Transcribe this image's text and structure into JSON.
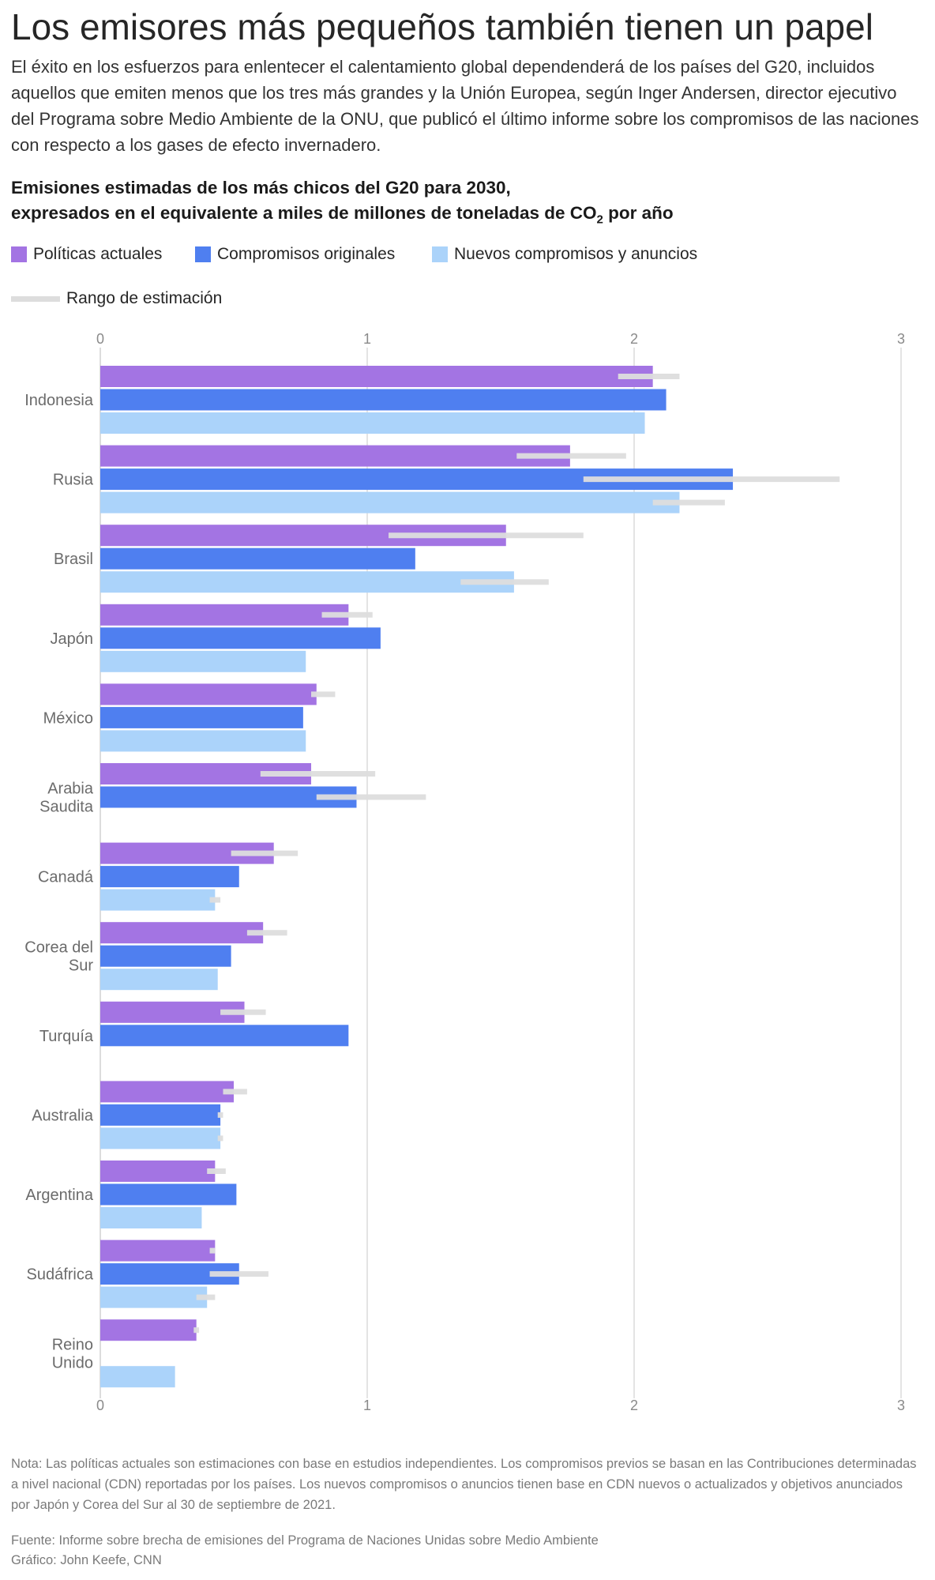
{
  "headline": "Los emisores más pequeños también tienen un papel",
  "intro": "El éxito en los esfuerzos para enlentecer el calentamiento global dependenderá de los países del G20, incluidos aquellos que emiten menos que los tres más grandes y la Unión Europea, según Inger Andersen, director ejecutivo del Programa sobre Medio Ambiente de la ONU, que publicó el último informe sobre los compromisos de las naciones con respecto a los gases de efecto invernadero.",
  "subtitle_line1": "Emisiones estimadas de los más chicos del G20 para 2030,",
  "subtitle_line2_prefix": "expresados en el equivalente a miles de millones de toneladas de CO",
  "subtitle_sub": "2",
  "subtitle_line2_suffix": " por año",
  "legend": {
    "current": "Políticas actuales",
    "original": "Compromisos originales",
    "new": "Nuevos compromisos y anuncios",
    "range": "Rango de estimación"
  },
  "colors": {
    "current": "#a374e3",
    "original": "#4f7ff0",
    "new": "#abd3fa",
    "range": "#dddddd",
    "grid": "#dcdcdc"
  },
  "chart_data": {
    "type": "bar",
    "orientation": "horizontal",
    "xlim": [
      0,
      3
    ],
    "xticks": [
      "0",
      "1",
      "2",
      "3"
    ],
    "grid": true,
    "legend_placement": "top-left",
    "categories": [
      [
        "Indonesia"
      ],
      [
        "Rusia"
      ],
      [
        "Brasil"
      ],
      [
        "Japón"
      ],
      [
        "México"
      ],
      [
        "Arabia",
        "Saudita"
      ],
      [
        "Canadá"
      ],
      [
        "Corea del",
        "Sur"
      ],
      [
        "Turquía"
      ],
      [
        "Australia"
      ],
      [
        "Argentina"
      ],
      [
        "Sudáfrica"
      ],
      [
        "Reino",
        "Unido"
      ]
    ],
    "series": [
      {
        "name": "Políticas actuales",
        "key": "current",
        "values": [
          2.07,
          1.76,
          1.52,
          0.93,
          0.81,
          0.79,
          0.65,
          0.61,
          0.54,
          0.5,
          0.43,
          0.43,
          0.36
        ],
        "ranges": [
          [
            1.94,
            2.17
          ],
          [
            1.56,
            1.97
          ],
          [
            1.08,
            1.81
          ],
          [
            0.83,
            1.02
          ],
          [
            0.79,
            0.88
          ],
          [
            0.6,
            1.03
          ],
          [
            0.49,
            0.74
          ],
          [
            0.55,
            0.7
          ],
          [
            0.45,
            0.62
          ],
          [
            0.46,
            0.55
          ],
          [
            0.4,
            0.47
          ],
          [
            0.41,
            0.43
          ],
          [
            0.35,
            0.37
          ]
        ]
      },
      {
        "name": "Compromisos originales",
        "key": "original",
        "values": [
          2.12,
          2.37,
          1.18,
          1.05,
          0.76,
          0.96,
          0.52,
          0.49,
          0.93,
          0.45,
          0.51,
          0.52,
          null
        ],
        "ranges": [
          null,
          [
            1.81,
            2.77
          ],
          null,
          null,
          null,
          [
            0.81,
            1.22
          ],
          null,
          null,
          null,
          [
            0.44,
            0.46
          ],
          null,
          [
            0.41,
            0.63
          ],
          null
        ]
      },
      {
        "name": "Nuevos compromisos y anuncios",
        "key": "new",
        "values": [
          2.04,
          2.17,
          1.55,
          0.77,
          0.77,
          null,
          0.43,
          0.44,
          null,
          0.45,
          0.38,
          0.4,
          0.28
        ],
        "ranges": [
          null,
          [
            2.07,
            2.34
          ],
          [
            1.35,
            1.68
          ],
          null,
          null,
          null,
          [
            0.41,
            0.45
          ],
          null,
          null,
          [
            0.44,
            0.46
          ],
          null,
          [
            0.36,
            0.43
          ],
          null
        ]
      }
    ]
  },
  "notes": "Nota: Las políticas actuales son estimaciones con base en estudios independientes. Los compromisos previos se basan en las Contribuciones determinadas a nivel nacional (CDN) reportadas por los países. Los nuevos compromisos o anuncios tienen base en CDN nuevos o actualizados y objetivos anunciados por Japón y Corea del Sur al 30 de septiembre de 2021.",
  "source": "Fuente: Informe sobre brecha de emisiones del Programa de Naciones Unidas sobre Medio Ambiente",
  "credit": "Gráfico: John Keefe, CNN"
}
